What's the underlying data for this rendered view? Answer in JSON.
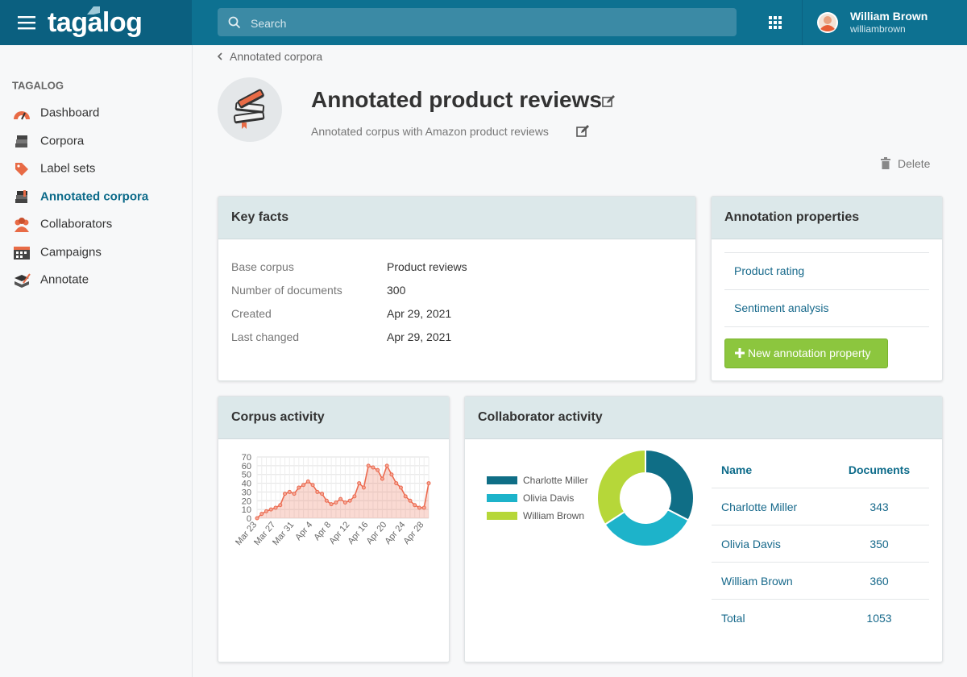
{
  "header": {
    "logo": "tagalog",
    "search_placeholder": "Search",
    "user_name": "William Brown",
    "user_handle": "williambrown"
  },
  "sidebar": {
    "heading": "TAGALOG",
    "items": [
      "Dashboard",
      "Corpora",
      "Label sets",
      "Annotated corpora",
      "Collaborators",
      "Campaigns",
      "Annotate"
    ],
    "active": 3
  },
  "breadcrumb": "Annotated corpora",
  "page": {
    "title": "Annotated product reviews",
    "description": "Annotated corpus with Amazon product reviews",
    "delete": "Delete"
  },
  "key_facts": {
    "title": "Key facts",
    "rows": [
      [
        "Base corpus",
        "Product reviews"
      ],
      [
        "Number of documents",
        300
      ],
      [
        "Created",
        "Apr 29, 2021"
      ],
      [
        "Last changed",
        "Apr 29, 2021"
      ]
    ]
  },
  "annotation_properties": {
    "title": "Annotation properties",
    "items": [
      "Product rating",
      "Sentiment analysis"
    ],
    "button": "New annotation property"
  },
  "corpus_activity": {
    "title": "Corpus activity",
    "chart": {
      "type": "line",
      "categories": [
        "Mar 23",
        null,
        null,
        null,
        "Mar 27",
        null,
        null,
        null,
        "Mar 31",
        null,
        null,
        null,
        "Apr 4",
        null,
        null,
        null,
        "Apr 8",
        null,
        null,
        null,
        "Apr 12",
        null,
        null,
        null,
        "Apr 16",
        null,
        null,
        null,
        "Apr 20",
        null,
        null,
        null,
        "Apr 24",
        null,
        null,
        null,
        "Apr 28",
        null
      ],
      "values": [
        0,
        5,
        8,
        10,
        12,
        15,
        28,
        30,
        28,
        35,
        38,
        42,
        38,
        30,
        28,
        20,
        16,
        18,
        22,
        18,
        20,
        25,
        40,
        35,
        60,
        58,
        55,
        45,
        60,
        50,
        40,
        35,
        25,
        20,
        15,
        12,
        12,
        40
      ],
      "color": "#ec6a4f",
      "ylim": [
        0,
        70
      ],
      "yticks": [
        0,
        10,
        20,
        30,
        40,
        50,
        60,
        70
      ],
      "grid": true
    }
  },
  "collaborator_activity": {
    "title": "Collaborator activity",
    "chart": {
      "type": "pie",
      "labels": [
        "Charlotte Miller",
        "Olivia Davis",
        "William Brown"
      ],
      "values": [
        343,
        350,
        360
      ],
      "colors": [
        "#0f6e86",
        "#1db3ca",
        "#b6d739"
      ],
      "donut": true
    },
    "table": {
      "columns": [
        "Name",
        "Documents"
      ],
      "rows": [
        [
          "Charlotte Miller",
          343
        ],
        [
          "Olivia Davis",
          350
        ],
        [
          "William Brown",
          360
        ]
      ],
      "total": [
        "Total",
        1053
      ]
    }
  }
}
